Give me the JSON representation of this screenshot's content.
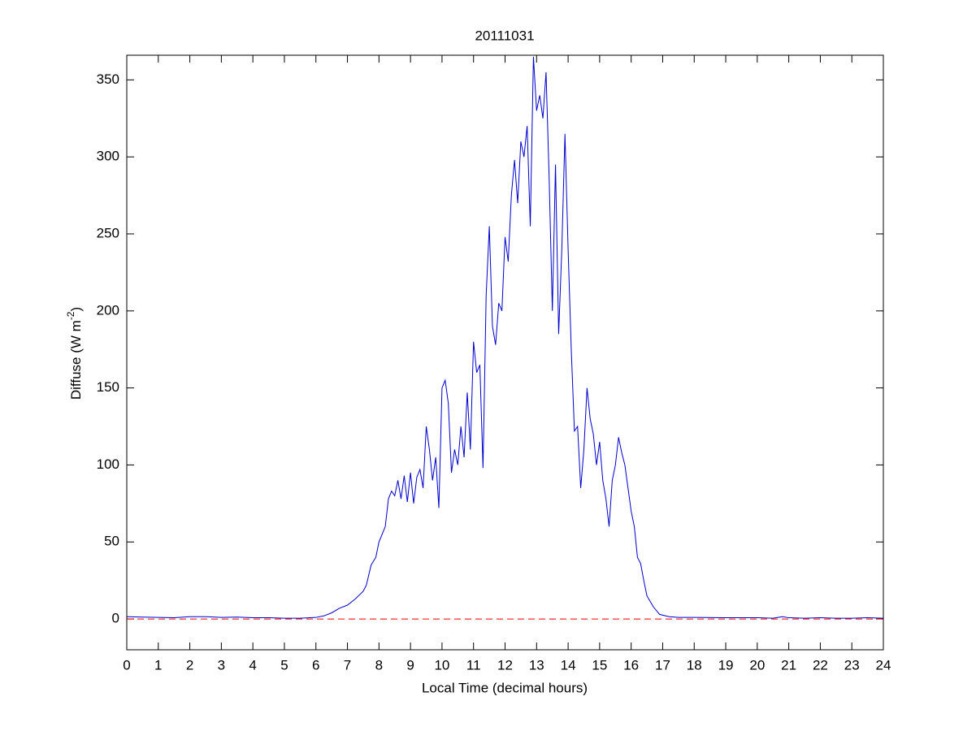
{
  "chart_data": {
    "type": "line",
    "title": "20111031",
    "xlabel": "Local Time (decimal hours)",
    "ylabel": {
      "text": "Diffuse (W m",
      "superscript": "-2",
      "suffix": ")"
    },
    "xlim": [
      0,
      24
    ],
    "ylim": [
      -20,
      366
    ],
    "xticks": [
      0,
      1,
      2,
      3,
      4,
      5,
      6,
      7,
      8,
      9,
      10,
      11,
      12,
      13,
      14,
      15,
      16,
      17,
      18,
      19,
      20,
      21,
      22,
      23,
      24
    ],
    "yticks": [
      0,
      50,
      100,
      150,
      200,
      250,
      300,
      350
    ],
    "grid": false,
    "hline": {
      "y": 0,
      "color": "#ff0000",
      "style": "dashed"
    },
    "x": [
      0,
      0.5,
      1,
      1.5,
      2,
      2.5,
      3,
      3.5,
      4,
      4.5,
      5,
      5.5,
      6,
      6.25,
      6.5,
      6.75,
      7,
      7.25,
      7.5,
      7.6,
      7.75,
      7.9,
      8,
      8.1,
      8.2,
      8.3,
      8.4,
      8.5,
      8.6,
      8.7,
      8.8,
      8.9,
      9,
      9.1,
      9.2,
      9.3,
      9.4,
      9.5,
      9.6,
      9.7,
      9.8,
      9.9,
      10,
      10.1,
      10.2,
      10.3,
      10.4,
      10.5,
      10.6,
      10.7,
      10.8,
      10.9,
      11,
      11.1,
      11.2,
      11.3,
      11.4,
      11.5,
      11.6,
      11.7,
      11.8,
      11.9,
      12,
      12.1,
      12.2,
      12.3,
      12.4,
      12.5,
      12.6,
      12.7,
      12.8,
      12.9,
      13,
      13.1,
      13.2,
      13.3,
      13.4,
      13.5,
      13.6,
      13.7,
      13.8,
      13.9,
      14,
      14.1,
      14.2,
      14.3,
      14.4,
      14.5,
      14.6,
      14.7,
      14.8,
      14.9,
      15,
      15.1,
      15.2,
      15.3,
      15.4,
      15.5,
      15.6,
      15.7,
      15.8,
      15.9,
      16,
      16.1,
      16.2,
      16.3,
      16.4,
      16.5,
      16.7,
      16.9,
      17.2,
      17.5,
      18,
      19,
      20,
      20.5,
      20.8,
      21,
      21.5,
      22,
      22.5,
      23,
      23.5,
      24
    ],
    "series": [
      {
        "color": "#0000cc",
        "values": [
          1.5,
          1.2,
          1,
          0.8,
          1.5,
          1.5,
          1,
          1.2,
          0.8,
          0.8,
          0.5,
          0.5,
          1,
          2,
          4,
          7,
          9,
          13,
          18,
          22,
          35,
          40,
          50,
          55,
          60,
          78,
          83,
          80,
          90,
          78,
          93,
          76,
          95,
          75,
          92,
          97,
          85,
          125,
          110,
          90,
          105,
          72,
          150,
          155,
          140,
          95,
          110,
          100,
          125,
          105,
          147,
          110,
          180,
          160,
          165,
          98,
          210,
          255,
          190,
          178,
          205,
          200,
          248,
          232,
          275,
          298,
          270,
          310,
          300,
          320,
          255,
          365,
          330,
          340,
          325,
          355,
          285,
          200,
          295,
          185,
          240,
          315,
          240,
          175,
          122,
          125,
          85,
          110,
          150,
          130,
          120,
          100,
          115,
          90,
          78,
          60,
          90,
          100,
          118,
          108,
          100,
          85,
          70,
          60,
          40,
          36,
          25,
          15,
          8,
          3,
          1.5,
          1,
          1,
          0.8,
          0.8,
          0.5,
          1.5,
          0.8,
          0.5,
          0.8,
          0.5,
          0.5,
          0.8,
          0.5
        ]
      }
    ]
  }
}
